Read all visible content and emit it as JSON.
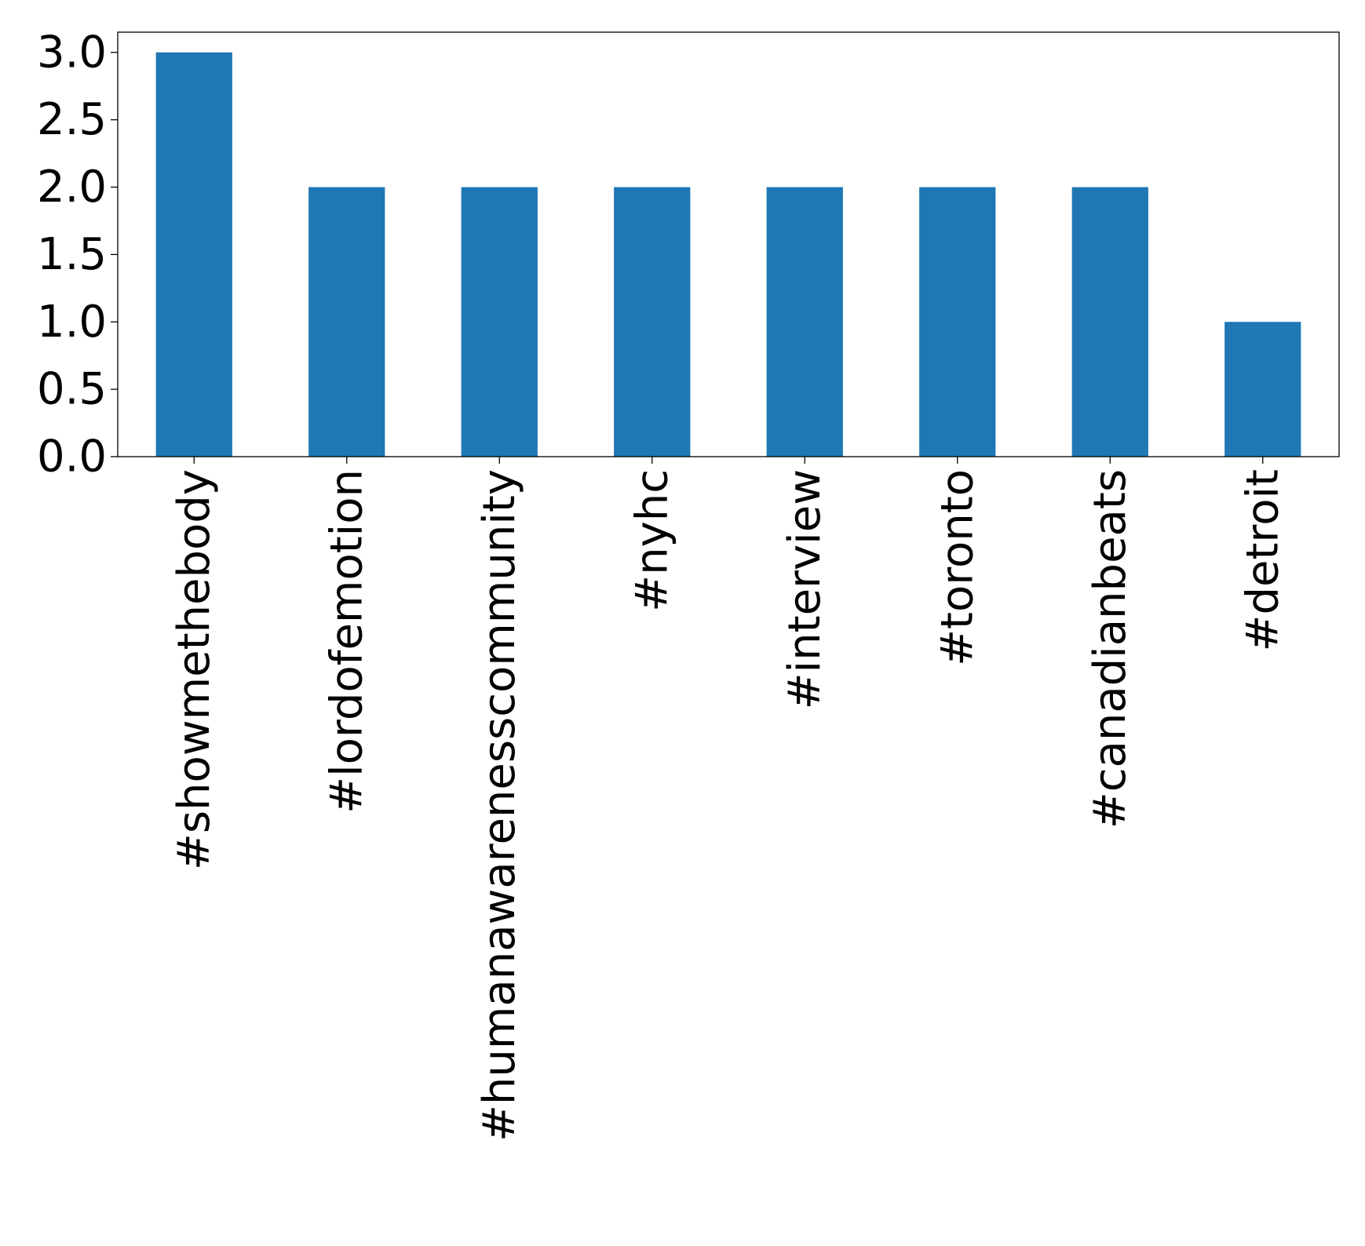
{
  "chart_data": {
    "type": "bar",
    "title": "",
    "xlabel": "",
    "ylabel": "",
    "categories": [
      "#showmethebody",
      "#lordofemotion",
      "#humanawarenesscommunity",
      "#nyhc",
      "#interview",
      "#toronto",
      "#canadianbeats",
      "#detroit"
    ],
    "values": [
      3,
      2,
      2,
      2,
      2,
      2,
      2,
      1
    ],
    "ylim": [
      0,
      3.15
    ],
    "yticks": [
      0.0,
      0.5,
      1.0,
      1.5,
      2.0,
      2.5,
      3.0
    ],
    "ytick_labels": [
      "0.0",
      "0.5",
      "1.0",
      "1.5",
      "2.0",
      "2.5",
      "3.0"
    ],
    "grid": false,
    "legend": "none",
    "bar_color": "#1f77b4"
  }
}
